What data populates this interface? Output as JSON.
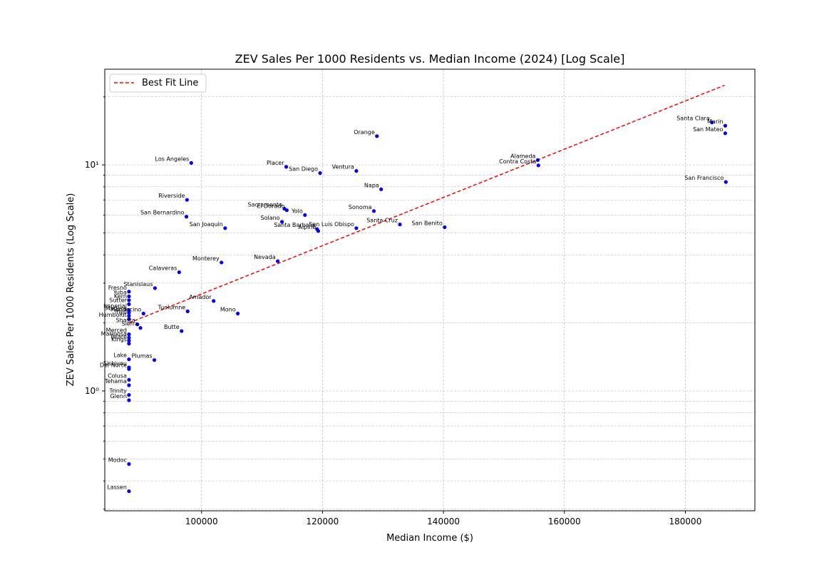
{
  "chart_data": {
    "type": "scatter",
    "title": "ZEV Sales Per 1000 Residents vs. Median Income (2024) [Log Scale]",
    "xlabel": "Median Income ($)",
    "ylabel": "ZEV Sales Per 1000 Residents (Log Scale)",
    "xlim": [
      84000,
      191500
    ],
    "ylim": [
      0.295,
      26.5
    ],
    "yscale": "log",
    "xticks": [
      100000,
      120000,
      140000,
      160000,
      180000
    ],
    "xtick_labels": [
      "100000",
      "120000",
      "140000",
      "160000",
      "180000"
    ],
    "yticks": [
      1,
      10
    ],
    "ytick_labels": [
      "10⁰",
      "10¹"
    ],
    "grid": true,
    "legend": {
      "position": "top-left",
      "entries": [
        "Best Fit Line"
      ]
    },
    "colors": {
      "points": "#0000ff",
      "fit_line": "#ff0000",
      "grid": "#b0b0b0"
    },
    "fit_line": {
      "name": "Best Fit Line",
      "x": [
        88000,
        186500
      ],
      "y": [
        2.0,
        22.5
      ]
    },
    "points": [
      {
        "label": "Santa Clara",
        "x": 184400,
        "y": 15.4
      },
      {
        "label": "Marin",
        "x": 186600,
        "y": 14.9
      },
      {
        "label": "San Mateo",
        "x": 186600,
        "y": 13.8
      },
      {
        "label": "San Francisco",
        "x": 186700,
        "y": 8.4
      },
      {
        "label": "Orange",
        "x": 129000,
        "y": 13.4
      },
      {
        "label": "Alameda",
        "x": 155600,
        "y": 10.5
      },
      {
        "label": "Contra Costa",
        "x": 155700,
        "y": 9.95
      },
      {
        "label": "Los Angeles",
        "x": 98300,
        "y": 10.2
      },
      {
        "label": "Placer",
        "x": 114000,
        "y": 9.8
      },
      {
        "label": "San Diego",
        "x": 119600,
        "y": 9.2
      },
      {
        "label": "Ventura",
        "x": 125600,
        "y": 9.4
      },
      {
        "label": "Napa",
        "x": 129700,
        "y": 7.8
      },
      {
        "label": "Riverside",
        "x": 97600,
        "y": 7.0
      },
      {
        "label": "Sacramento",
        "x": 113700,
        "y": 6.4
      },
      {
        "label": "El Dorado",
        "x": 114100,
        "y": 6.3
      },
      {
        "label": "Yolo",
        "x": 117100,
        "y": 6.0
      },
      {
        "label": "Sonoma",
        "x": 128500,
        "y": 6.25
      },
      {
        "label": "San Bernardino",
        "x": 97500,
        "y": 5.9
      },
      {
        "label": "Solano",
        "x": 113300,
        "y": 5.6
      },
      {
        "label": "Santa Cruz",
        "x": 132800,
        "y": 5.45
      },
      {
        "label": "San Benito",
        "x": 140200,
        "y": 5.3
      },
      {
        "label": "San Joaquin",
        "x": 103900,
        "y": 5.25
      },
      {
        "label": "Santa Barbara",
        "x": 119100,
        "y": 5.2
      },
      {
        "label": "San Luis Obispo",
        "x": 125600,
        "y": 5.25
      },
      {
        "label": "Alpine",
        "x": 119300,
        "y": 5.1
      },
      {
        "label": "Nevada",
        "x": 112600,
        "y": 3.75
      },
      {
        "label": "Monterey",
        "x": 103300,
        "y": 3.7
      },
      {
        "label": "Calaveras",
        "x": 96300,
        "y": 3.35
      },
      {
        "label": "Stanislaus",
        "x": 92300,
        "y": 2.85
      },
      {
        "label": "Fresno",
        "x": 88000,
        "y": 2.75
      },
      {
        "label": "Yuba",
        "x": 88000,
        "y": 2.62
      },
      {
        "label": "Kern",
        "x": 88000,
        "y": 2.52
      },
      {
        "label": "Amador",
        "x": 102000,
        "y": 2.5
      },
      {
        "label": "Sutter",
        "x": 88000,
        "y": 2.42
      },
      {
        "label": "Imperial",
        "x": 88000,
        "y": 2.28
      },
      {
        "label": "Madera",
        "x": 88000,
        "y": 2.22
      },
      {
        "label": "Mendocino",
        "x": 90400,
        "y": 2.2
      },
      {
        "label": "Tuolumne",
        "x": 97700,
        "y": 2.25
      },
      {
        "label": "Mono",
        "x": 106000,
        "y": 2.2
      },
      {
        "label": "Inyo",
        "x": 88000,
        "y": 2.15
      },
      {
        "label": "Humboldt",
        "x": 88000,
        "y": 2.08
      },
      {
        "label": "Shasta",
        "x": 89400,
        "y": 1.97
      },
      {
        "label": "Sierra",
        "x": 89900,
        "y": 1.9
      },
      {
        "label": "Butte",
        "x": 96700,
        "y": 1.84
      },
      {
        "label": "Merced",
        "x": 88000,
        "y": 1.78
      },
      {
        "label": "Mariposa",
        "x": 88000,
        "y": 1.72
      },
      {
        "label": "Tulare",
        "x": 88000,
        "y": 1.67
      },
      {
        "label": "Kings",
        "x": 88000,
        "y": 1.62
      },
      {
        "label": "Lake",
        "x": 88000,
        "y": 1.38
      },
      {
        "label": "Plumas",
        "x": 92200,
        "y": 1.37
      },
      {
        "label": "Siskiyou",
        "x": 88000,
        "y": 1.27
      },
      {
        "label": "Del Norte",
        "x": 88000,
        "y": 1.25
      },
      {
        "label": "Colusa",
        "x": 88000,
        "y": 1.12
      },
      {
        "label": "Tehama",
        "x": 88000,
        "y": 1.06
      },
      {
        "label": "Trinity",
        "x": 88000,
        "y": 0.96
      },
      {
        "label": "Glenn",
        "x": 88000,
        "y": 0.91
      },
      {
        "label": "Modoc",
        "x": 88000,
        "y": 0.475
      },
      {
        "label": "Lassen",
        "x": 88000,
        "y": 0.36
      }
    ]
  }
}
